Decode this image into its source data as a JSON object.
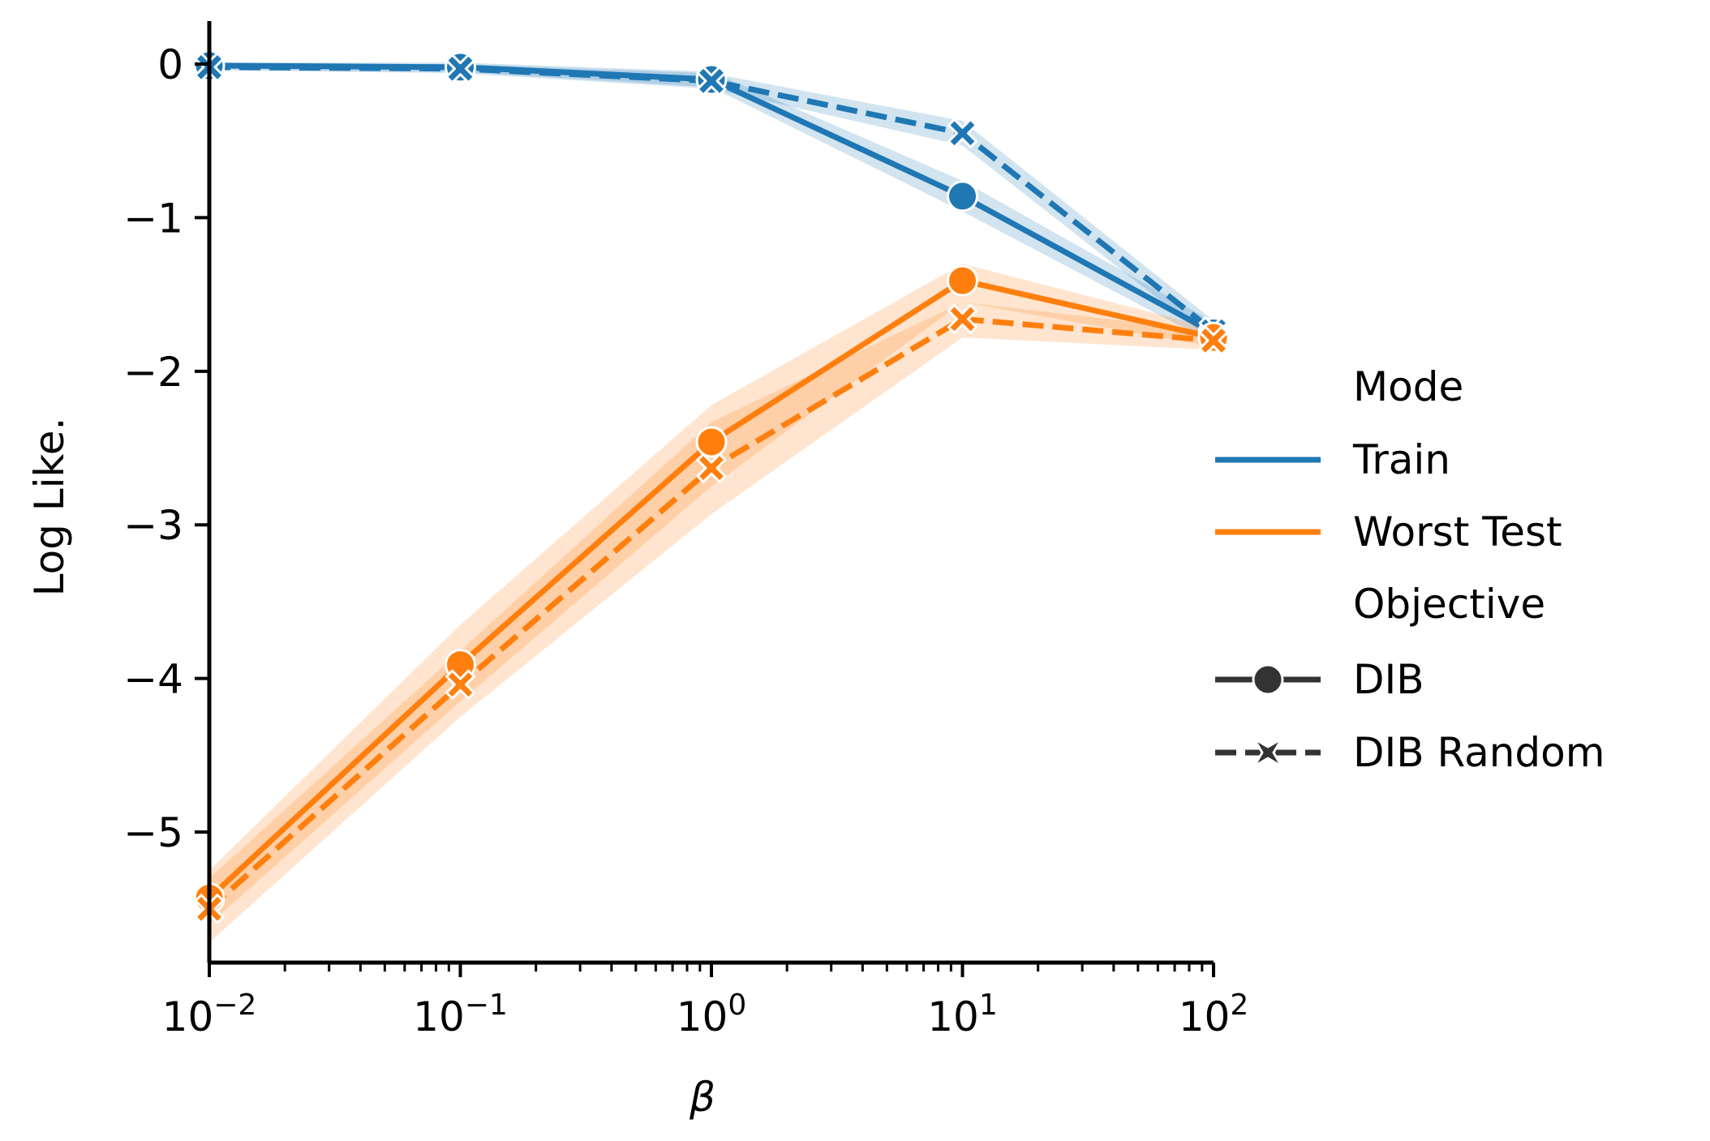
{
  "chart_data": {
    "type": "line",
    "x_scale": "log",
    "x": [
      0.01,
      0.1,
      1,
      10,
      100
    ],
    "xlim": [
      0.01,
      100
    ],
    "ylim": [
      -5.85,
      0.28
    ],
    "xlabel": "β",
    "ylabel": "Log Like.",
    "x_ticks": [
      {
        "value": 0.01,
        "base": "10",
        "exp": "−2"
      },
      {
        "value": 0.1,
        "base": "10",
        "exp": "−1"
      },
      {
        "value": 1,
        "base": "10",
        "exp": "0"
      },
      {
        "value": 10,
        "base": "10",
        "exp": "1"
      },
      {
        "value": 100,
        "base": "10",
        "exp": "2"
      }
    ],
    "y_ticks": [
      {
        "value": 0,
        "label": "0"
      },
      {
        "value": -1,
        "label": "−1"
      },
      {
        "value": -2,
        "label": "−2"
      },
      {
        "value": -3,
        "label": "−3"
      },
      {
        "value": -4,
        "label": "−4"
      },
      {
        "value": -5,
        "label": "−5"
      }
    ],
    "series": [
      {
        "name": "Train, DIB",
        "mode": "Train",
        "objective": "DIB",
        "color": "#1f77b4",
        "dashed": false,
        "marker": "circle",
        "values": [
          -0.01,
          -0.02,
          -0.1,
          -0.86,
          -1.75
        ],
        "lower": [
          -0.03,
          -0.05,
          -0.15,
          -0.96,
          -1.82
        ],
        "upper": [
          0.01,
          0.01,
          -0.05,
          -0.76,
          -1.68
        ]
      },
      {
        "name": "Train, DIB Random",
        "mode": "Train",
        "objective": "DIB Random",
        "color": "#1f77b4",
        "dashed": true,
        "marker": "x",
        "values": [
          -0.02,
          -0.03,
          -0.11,
          -0.45,
          -1.74
        ],
        "lower": [
          -0.04,
          -0.06,
          -0.16,
          -0.53,
          -1.81
        ],
        "upper": [
          0.0,
          0.0,
          -0.06,
          -0.37,
          -1.67
        ]
      },
      {
        "name": "Worst Test, DIB",
        "mode": "Worst Test",
        "objective": "DIB",
        "color": "#ff7f0e",
        "dashed": false,
        "marker": "circle",
        "values": [
          -5.43,
          -3.91,
          -2.46,
          -1.41,
          -1.78
        ],
        "lower": [
          -5.6,
          -4.15,
          -2.75,
          -1.55,
          -1.84
        ],
        "upper": [
          -5.25,
          -3.65,
          -2.22,
          -1.3,
          -1.72
        ]
      },
      {
        "name": "Worst Test, DIB Random",
        "mode": "Worst Test",
        "objective": "DIB Random",
        "color": "#ff7f0e",
        "dashed": true,
        "marker": "x",
        "values": [
          -5.5,
          -4.04,
          -2.63,
          -1.66,
          -1.8
        ],
        "lower": [
          -5.72,
          -4.25,
          -2.93,
          -1.78,
          -1.86
        ],
        "upper": [
          -5.3,
          -3.82,
          -2.33,
          -1.55,
          -1.74
        ]
      }
    ],
    "legend": {
      "placement": "right",
      "mode_title": "Mode",
      "mode_entries": [
        {
          "label": "Train",
          "color": "#1f77b4"
        },
        {
          "label": "Worst Test",
          "color": "#ff7f0e"
        }
      ],
      "objective_title": "Objective",
      "objective_entries": [
        {
          "label": "DIB",
          "marker": "circle",
          "dashed": false
        },
        {
          "label": "DIB Random",
          "marker": "x",
          "dashed": true
        }
      ]
    }
  }
}
